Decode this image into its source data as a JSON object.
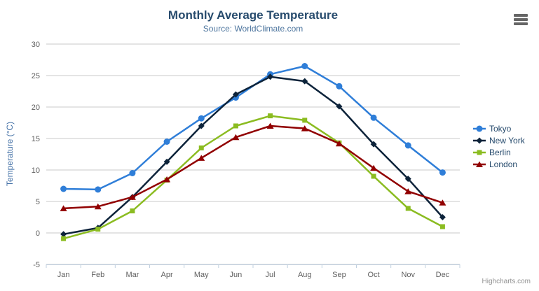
{
  "chart_data": {
    "type": "line",
    "title": "Monthly Average Temperature",
    "subtitle": "Source: WorldClimate.com",
    "ylabel": "Temperature (°C)",
    "xlabel": "",
    "ylim": [
      -5,
      30
    ],
    "ytick_step": 5,
    "grid": true,
    "legend_position": "right",
    "categories": [
      "Jan",
      "Feb",
      "Mar",
      "Apr",
      "May",
      "Jun",
      "Jul",
      "Aug",
      "Sep",
      "Oct",
      "Nov",
      "Dec"
    ],
    "series": [
      {
        "name": "Tokyo",
        "marker": "circle",
        "color": "#2f7ed8",
        "values": [
          7.0,
          6.9,
          9.5,
          14.5,
          18.2,
          21.5,
          25.2,
          26.5,
          23.3,
          18.3,
          13.9,
          9.6
        ]
      },
      {
        "name": "New York",
        "marker": "diamond",
        "color": "#0d233a",
        "values": [
          -0.2,
          0.8,
          5.7,
          11.3,
          17.0,
          22.0,
          24.8,
          24.1,
          20.1,
          14.1,
          8.6,
          2.5
        ]
      },
      {
        "name": "Berlin",
        "marker": "square",
        "color": "#8bbc21",
        "values": [
          -0.9,
          0.6,
          3.5,
          8.4,
          13.5,
          17.0,
          18.6,
          17.9,
          14.3,
          9.0,
          3.9,
          1.0
        ]
      },
      {
        "name": "London",
        "marker": "triangle",
        "color": "#910000",
        "values": [
          3.9,
          4.2,
          5.7,
          8.5,
          11.9,
          15.2,
          17.0,
          16.6,
          14.2,
          10.3,
          6.6,
          4.8
        ]
      }
    ],
    "style": {
      "gridline_color": "#c9c9c9",
      "axis_line_color": "#c0d0e0",
      "label_color": "#606060",
      "title_color": "#274b6d",
      "subtitle_color": "#4d759e",
      "yaxis_title_color": "#4572a7",
      "legend_text_color": "#274b6d"
    }
  },
  "credit": {
    "label": "Highcharts.com"
  },
  "export_menu": {
    "icon": "hamburger-menu-icon",
    "tooltip": "Chart context menu",
    "bar_color": "#666666"
  }
}
